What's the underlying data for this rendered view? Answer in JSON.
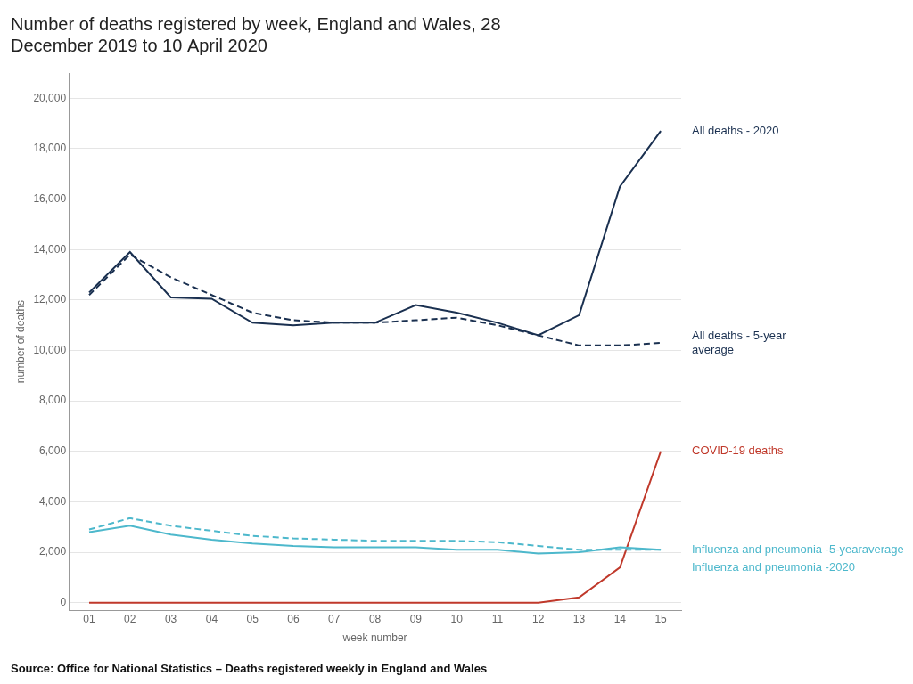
{
  "chart_data": {
    "type": "line",
    "title": "Number of deaths registered by week, England and Wales, 28\nDecember 2019 to 10 April 2020",
    "xlabel": "week number",
    "ylabel": "number of deaths",
    "source": "Source: Office for National Statistics – Deaths registered weekly in England and Wales",
    "x": [
      1,
      2,
      3,
      4,
      5,
      6,
      7,
      8,
      9,
      10,
      11,
      12,
      13,
      14,
      15
    ],
    "xlim": [
      0.5,
      15.5
    ],
    "xticks": [
      {
        "value": 1,
        "label": "01"
      },
      {
        "value": 2,
        "label": "02"
      },
      {
        "value": 3,
        "label": "03"
      },
      {
        "value": 4,
        "label": "04"
      },
      {
        "value": 5,
        "label": "05"
      },
      {
        "value": 6,
        "label": "06"
      },
      {
        "value": 7,
        "label": "07"
      },
      {
        "value": 8,
        "label": "08"
      },
      {
        "value": 9,
        "label": "09"
      },
      10,
      11,
      12,
      13,
      14,
      15
    ],
    "ylim": [
      -300,
      21000
    ],
    "yticks": [
      0,
      {
        "value": 2000,
        "label": "2,000"
      },
      {
        "value": 4000,
        "label": "4,000"
      },
      {
        "value": 6000,
        "label": "6,000"
      },
      {
        "value": 8000,
        "label": "8,000"
      },
      {
        "value": 10000,
        "label": "10,000"
      },
      {
        "value": 12000,
        "label": "12,000"
      },
      {
        "value": 14000,
        "label": "14,000"
      },
      {
        "value": 16000,
        "label": "16,000"
      },
      {
        "value": 18000,
        "label": "18,000"
      },
      {
        "value": 20000,
        "label": "20,000"
      }
    ],
    "grid": "y",
    "series": [
      {
        "name": "All deaths - 2020",
        "color": "#1a3050",
        "line_style": "solid",
        "values": [
          12300,
          13900,
          12100,
          12050,
          11100,
          11000,
          11100,
          11100,
          11800,
          11500,
          11100,
          10600,
          11400,
          16500,
          18700
        ]
      },
      {
        "name": "All deaths - 5-year\naverage",
        "color": "#1a3050",
        "line_style": "dashed",
        "values": [
          12200,
          13800,
          12900,
          12200,
          11500,
          11200,
          11100,
          11100,
          11200,
          11300,
          11000,
          10600,
          10200,
          10200,
          10300
        ]
      },
      {
        "name": "Influenza and pneumonia -5-yearaverage",
        "color": "#4db8cc",
        "line_style": "dashed",
        "values": [
          2900,
          3350,
          3050,
          2850,
          2650,
          2550,
          2500,
          2450,
          2450,
          2450,
          2400,
          2250,
          2100,
          2100,
          2100
        ]
      },
      {
        "name": "Influenza and pneumonia -2020",
        "color": "#4db8cc",
        "line_style": "solid",
        "values": [
          2800,
          3050,
          2700,
          2500,
          2350,
          2250,
          2200,
          2200,
          2200,
          2100,
          2100,
          1950,
          2000,
          2200,
          2100
        ]
      },
      {
        "name": "COVID-19 deaths",
        "color": "#c0392b",
        "line_style": "solid",
        "values": [
          0,
          0,
          0,
          0,
          0,
          0,
          0,
          0,
          0,
          0,
          0,
          0,
          210,
          1400,
          6000
        ]
      }
    ]
  }
}
